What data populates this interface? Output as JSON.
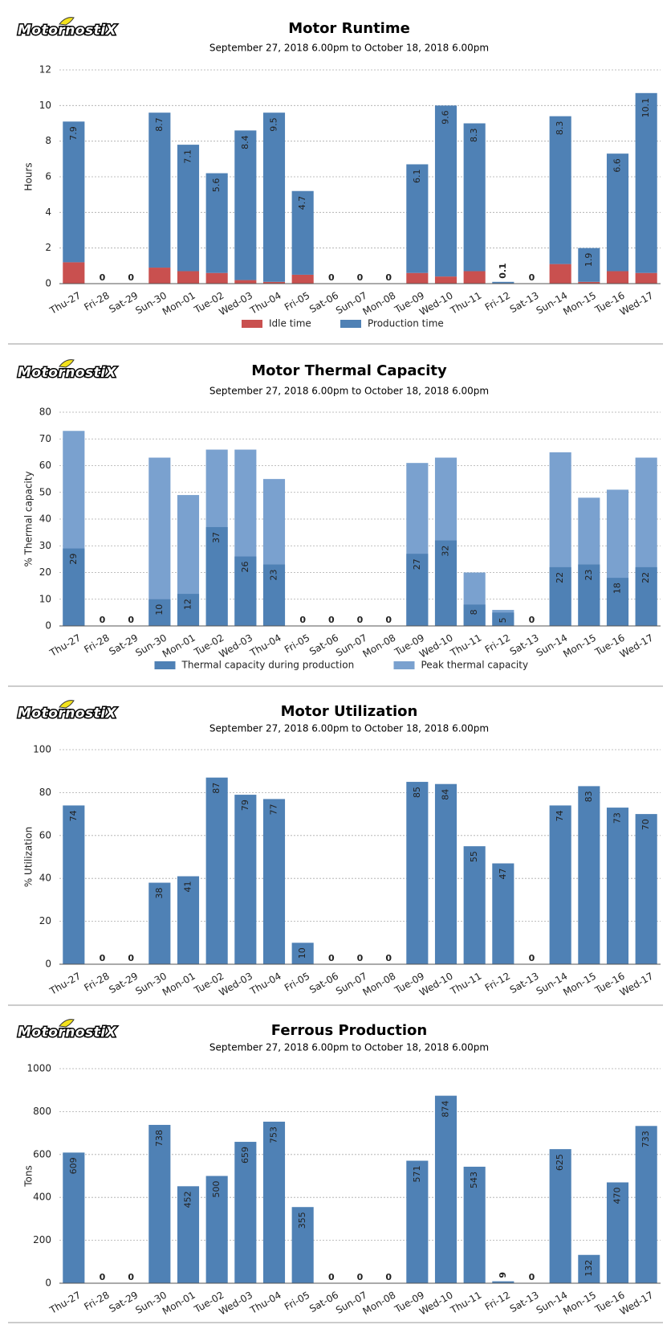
{
  "chart_data": [
    {
      "type": "bar",
      "barmode": "stack",
      "logo": "MotornostiX",
      "title": "Motor Runtime",
      "subtitle": "September 27, 2018 6.00pm to October 18, 2018 6.00pm",
      "y_label": "Hours",
      "categories": [
        "Thu-27",
        "Fri-28",
        "Sat-29",
        "Sun-30",
        "Mon-01",
        "Tue-02",
        "Wed-03",
        "Thu-04",
        "Fri-05",
        "Sat-06",
        "Sun-07",
        "Mon-08",
        "Tue-09",
        "Wed-10",
        "Thu-11",
        "Fri-12",
        "Sat-13",
        "Sun-14",
        "Mon-15",
        "Tue-16",
        "Wed-17"
      ],
      "series": [
        {
          "name": "Idle time",
          "color": "#c9504f",
          "labels": false,
          "values": [
            1.2,
            0,
            0,
            0.9,
            0.7,
            0.6,
            0.2,
            0.1,
            0.5,
            0,
            0,
            0,
            0.6,
            0.4,
            0.7,
            0,
            0,
            1.1,
            0.1,
            0.7,
            0.6
          ]
        },
        {
          "name": "Production time",
          "color": "#4f81b5",
          "labels": true,
          "values": [
            7.9,
            0,
            0,
            8.7,
            7.1,
            5.6,
            8.4,
            9.5,
            4.7,
            0,
            0,
            0,
            6.1,
            9.6,
            8.3,
            0.1,
            0,
            8.3,
            1.9,
            6.6,
            10.1
          ]
        }
      ],
      "ylim": [
        0,
        12
      ],
      "yticks": [
        0,
        2,
        4,
        6,
        8,
        10,
        12
      ],
      "grid": true
    },
    {
      "type": "bar",
      "barmode": "overlay",
      "logo": "MotornostiX",
      "title": "Motor Thermal Capacity",
      "subtitle": "September 27, 2018 6.00pm to October 18, 2018 6.00pm",
      "y_label": "% Thermal capacity",
      "categories": [
        "Thu-27",
        "Fri-28",
        "Sat-29",
        "Sun-30",
        "Mon-01",
        "Tue-02",
        "Wed-03",
        "Thu-04",
        "Fri-05",
        "Sat-06",
        "Sun-07",
        "Mon-08",
        "Tue-09",
        "Wed-10",
        "Thu-11",
        "Fri-12",
        "Sat-13",
        "Sun-14",
        "Mon-15",
        "Tue-16",
        "Wed-17"
      ],
      "series": [
        {
          "name": "Thermal capacity during production",
          "color": "#4f81b5",
          "labels": true,
          "values": [
            29,
            0,
            0,
            10,
            12,
            37,
            26,
            23,
            0,
            0,
            0,
            0,
            27,
            32,
            8,
            5,
            0,
            22,
            23,
            18,
            22
          ]
        },
        {
          "name": "Peak thermal capacity",
          "color": "#7aa1cf",
          "labels": false,
          "values": [
            73,
            0,
            0,
            63,
            49,
            66,
            66,
            55,
            0,
            0,
            0,
            0,
            61,
            63,
            20,
            6,
            0,
            65,
            48,
            51,
            63
          ]
        }
      ],
      "ylim": [
        0,
        80
      ],
      "yticks": [
        0,
        10,
        20,
        30,
        40,
        50,
        60,
        70,
        80
      ],
      "grid": true
    },
    {
      "type": "bar",
      "logo": "MotornostiX",
      "title": "Motor Utilization",
      "subtitle": "September 27, 2018 6.00pm to October 18, 2018 6.00pm",
      "y_label": "% Utilization",
      "categories": [
        "Thu-27",
        "Fri-28",
        "Sat-29",
        "Sun-30",
        "Mon-01",
        "Tue-02",
        "Wed-03",
        "Thu-04",
        "Fri-05",
        "Sat-06",
        "Sun-07",
        "Mon-08",
        "Tue-09",
        "Wed-10",
        "Thu-11",
        "Fri-12",
        "Sat-13",
        "Sun-14",
        "Mon-15",
        "Tue-16",
        "Wed-17"
      ],
      "values": [
        74,
        0,
        0,
        38,
        41,
        87,
        79,
        77,
        10,
        0,
        0,
        0,
        85,
        84,
        55,
        47,
        0,
        74,
        83,
        73,
        70
      ],
      "color": "#4f81b5",
      "ylim": [
        0,
        100
      ],
      "yticks": [
        0,
        20,
        40,
        60,
        80,
        100
      ],
      "grid": true
    },
    {
      "type": "bar",
      "logo": "MotornostiX",
      "title": "Ferrous Production",
      "subtitle": "September 27, 2018 6.00pm to October 18, 2018 6.00pm",
      "y_label": "Tons",
      "categories": [
        "Thu-27",
        "Fri-28",
        "Sat-29",
        "Sun-30",
        "Mon-01",
        "Tue-02",
        "Wed-03",
        "Thu-04",
        "Fri-05",
        "Sat-06",
        "Sun-07",
        "Mon-08",
        "Tue-09",
        "Wed-10",
        "Thu-11",
        "Fri-12",
        "Sat-13",
        "Sun-14",
        "Mon-15",
        "Tue-16",
        "Wed-17"
      ],
      "values": [
        609,
        0,
        0,
        738,
        452,
        500,
        659,
        753,
        355,
        0,
        0,
        0,
        571,
        874,
        543,
        9,
        0,
        625,
        132,
        470,
        733
      ],
      "color": "#4f81b5",
      "ylim": [
        0,
        1000
      ],
      "yticks": [
        0,
        200,
        400,
        600,
        800,
        1000
      ],
      "grid": true
    }
  ]
}
